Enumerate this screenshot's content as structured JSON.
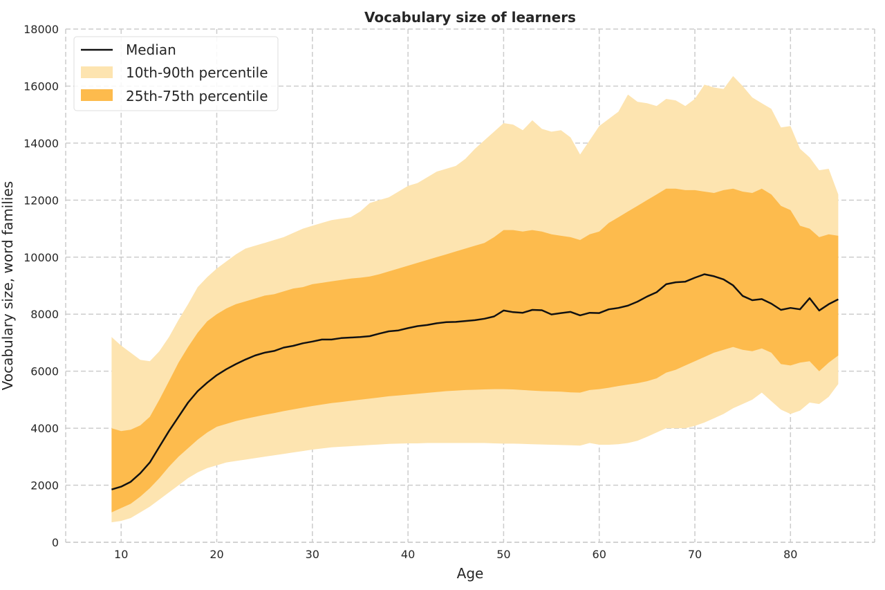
{
  "chart_data": {
    "type": "area",
    "title": "Vocabulary size of learners",
    "xlabel": "Age",
    "ylabel": "Vocabulary size, word families",
    "xlim": [
      4.2,
      88.8
    ],
    "ylim": [
      0,
      18000
    ],
    "xticks": [
      10,
      20,
      30,
      40,
      50,
      60,
      70,
      80
    ],
    "yticks": [
      0,
      2000,
      4000,
      6000,
      8000,
      10000,
      12000,
      14000,
      16000,
      18000
    ],
    "grid": true,
    "legend_position": "top-left",
    "colors": {
      "median": "#111111",
      "band_outer": "#fde4b0",
      "band_inner": "#fdbb4d"
    },
    "x": [
      9,
      10,
      11,
      12,
      13,
      14,
      15,
      16,
      17,
      18,
      19,
      20,
      21,
      22,
      23,
      24,
      25,
      26,
      27,
      28,
      29,
      30,
      31,
      32,
      33,
      34,
      35,
      36,
      37,
      38,
      39,
      40,
      41,
      42,
      43,
      44,
      45,
      46,
      47,
      48,
      49,
      50,
      51,
      52,
      53,
      54,
      55,
      56,
      57,
      58,
      59,
      60,
      61,
      62,
      63,
      64,
      65,
      66,
      67,
      68,
      69,
      70,
      71,
      72,
      73,
      74,
      75,
      76,
      77,
      78,
      79,
      80,
      81,
      82,
      83,
      84,
      85
    ],
    "series": [
      {
        "name": "Median",
        "values": [
          1850,
          1950,
          2120,
          2420,
          2800,
          3350,
          3900,
          4400,
          4900,
          5300,
          5600,
          5860,
          6070,
          6250,
          6410,
          6550,
          6650,
          6710,
          6830,
          6890,
          6980,
          7040,
          7110,
          7110,
          7160,
          7180,
          7200,
          7230,
          7320,
          7400,
          7430,
          7510,
          7580,
          7620,
          7680,
          7720,
          7730,
          7760,
          7790,
          7840,
          7920,
          8130,
          8070,
          8050,
          8150,
          8140,
          7990,
          8040,
          8080,
          7960,
          8050,
          8040,
          8170,
          8220,
          8300,
          8440,
          8620,
          8770,
          9050,
          9120,
          9140,
          9280,
          9400,
          9330,
          9220,
          9010,
          8640,
          8490,
          8530,
          8370,
          8150,
          8220,
          8170,
          8560,
          8130,
          8350,
          8520
        ]
      },
      {
        "name": "10th-90th percentile",
        "lower": [
          700,
          750,
          850,
          1050,
          1250,
          1500,
          1750,
          2000,
          2250,
          2450,
          2600,
          2700,
          2800,
          2850,
          2900,
          2950,
          3000,
          3050,
          3100,
          3150,
          3200,
          3250,
          3290,
          3330,
          3350,
          3370,
          3390,
          3410,
          3430,
          3450,
          3460,
          3470,
          3470,
          3480,
          3480,
          3480,
          3480,
          3480,
          3480,
          3480,
          3470,
          3460,
          3460,
          3450,
          3440,
          3430,
          3420,
          3410,
          3400,
          3390,
          3480,
          3420,
          3420,
          3440,
          3480,
          3560,
          3700,
          3850,
          4000,
          4000,
          4000,
          4080,
          4200,
          4350,
          4500,
          4700,
          4850,
          5000,
          5250,
          4950,
          4650,
          4500,
          4620,
          4900,
          4850,
          5100,
          5550
        ],
        "upper": [
          7200,
          6900,
          6650,
          6400,
          6350,
          6700,
          7200,
          7800,
          8350,
          8950,
          9300,
          9600,
          9850,
          10100,
          10300,
          10400,
          10500,
          10600,
          10700,
          10850,
          11000,
          11100,
          11200,
          11300,
          11350,
          11400,
          11600,
          11900,
          12000,
          12100,
          12300,
          12500,
          12600,
          12800,
          13000,
          13100,
          13200,
          13450,
          13800,
          14100,
          14400,
          14700,
          14650,
          14450,
          14800,
          14500,
          14400,
          14450,
          14200,
          13600,
          14100,
          14600,
          14850,
          15100,
          15700,
          15450,
          15400,
          15300,
          15550,
          15500,
          15300,
          15550,
          16050,
          15950,
          15900,
          16350,
          16000,
          15600,
          15400,
          15200,
          14550,
          14600,
          13800,
          13500,
          13050,
          13100,
          12200
        ]
      },
      {
        "name": "25th-75th percentile",
        "lower": [
          1050,
          1200,
          1350,
          1600,
          1900,
          2250,
          2650,
          3000,
          3300,
          3600,
          3850,
          4050,
          4150,
          4250,
          4330,
          4400,
          4470,
          4530,
          4600,
          4660,
          4720,
          4780,
          4830,
          4880,
          4920,
          4960,
          5000,
          5040,
          5080,
          5120,
          5150,
          5180,
          5210,
          5240,
          5270,
          5300,
          5320,
          5340,
          5350,
          5360,
          5370,
          5370,
          5360,
          5340,
          5320,
          5300,
          5290,
          5280,
          5260,
          5250,
          5340,
          5370,
          5420,
          5480,
          5530,
          5580,
          5650,
          5750,
          5950,
          6050,
          6200,
          6350,
          6500,
          6650,
          6750,
          6850,
          6750,
          6700,
          6800,
          6650,
          6250,
          6200,
          6300,
          6350,
          6000,
          6300,
          6550
        ],
        "upper": [
          4000,
          3900,
          3950,
          4100,
          4400,
          5000,
          5650,
          6300,
          6850,
          7350,
          7750,
          8000,
          8200,
          8350,
          8450,
          8550,
          8650,
          8700,
          8800,
          8900,
          8950,
          9050,
          9100,
          9150,
          9200,
          9250,
          9280,
          9320,
          9400,
          9500,
          9600,
          9700,
          9800,
          9900,
          10000,
          10100,
          10200,
          10300,
          10400,
          10500,
          10700,
          10950,
          10950,
          10900,
          10950,
          10900,
          10800,
          10750,
          10700,
          10600,
          10800,
          10900,
          11200,
          11400,
          11600,
          11800,
          12000,
          12200,
          12400,
          12400,
          12350,
          12350,
          12300,
          12250,
          12350,
          12400,
          12300,
          12250,
          12400,
          12200,
          11800,
          11650,
          11100,
          11000,
          10700,
          10800,
          10750
        ]
      }
    ]
  }
}
